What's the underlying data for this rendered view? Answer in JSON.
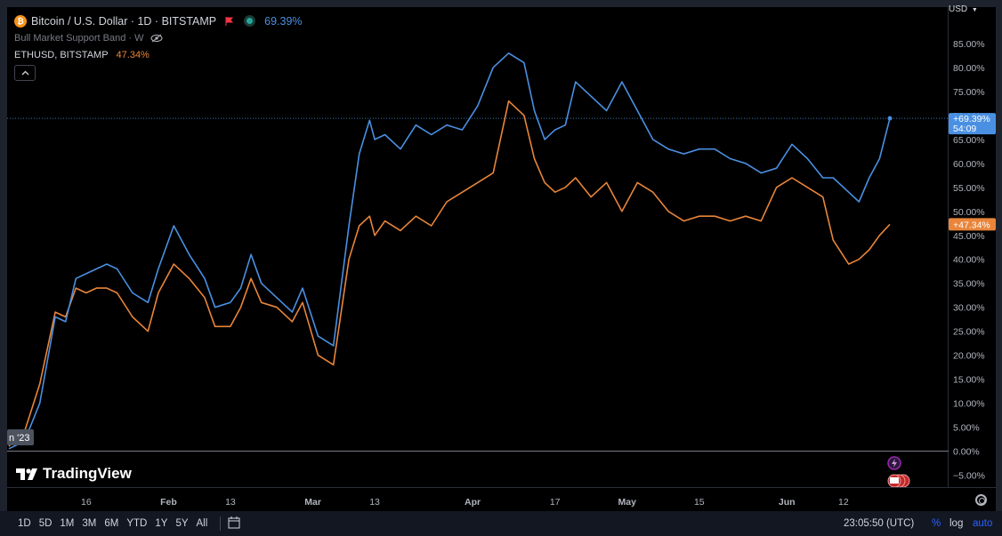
{
  "legend": {
    "main_symbol": "Bitcoin / U.S. Dollar · 1D · BITSTAMP",
    "main_change": "69.39%",
    "indicator": "Bull Market Support Band · W",
    "compare_symbol": "ETHUSD, BITSTAMP",
    "compare_change": "47.34%"
  },
  "currency_label": "USD",
  "price_labels": {
    "btc_value": "+69.39%",
    "btc_countdown": "54:09",
    "eth_value": "+47.34%"
  },
  "date_badge": "n '23",
  "brand": "TradingView",
  "timeframes": [
    "1D",
    "5D",
    "1M",
    "3M",
    "6M",
    "YTD",
    "1Y",
    "5Y",
    "All"
  ],
  "clock": "23:05:50 (UTC)",
  "scale_buttons": {
    "percent": "%",
    "log": "log",
    "auto": "auto"
  },
  "colors": {
    "btc": "#4a90e2",
    "eth": "#e8853a",
    "background": "#000000",
    "grid_text": "#b2b5be"
  },
  "chart_data": {
    "type": "line",
    "ylim": [
      -7.5,
      90
    ],
    "yticks": [
      "85.00%",
      "80.00%",
      "75.00%",
      "70.00%",
      "65.00%",
      "60.00%",
      "55.00%",
      "50.00%",
      "45.00%",
      "40.00%",
      "35.00%",
      "30.00%",
      "25.00%",
      "20.00%",
      "15.00%",
      "10.00%",
      "5.00%",
      "0.00%",
      "−5.00%"
    ],
    "ytick_values": [
      85,
      80,
      75,
      70,
      65,
      60,
      55,
      50,
      45,
      40,
      35,
      30,
      25,
      20,
      15,
      10,
      5,
      0,
      -5
    ],
    "xlim": [
      "2023-01-01",
      "2023-06-21"
    ],
    "xticks": [
      {
        "label": "16",
        "date": "2023-01-16"
      },
      {
        "label": "Feb",
        "date": "2023-02-01"
      },
      {
        "label": "13",
        "date": "2023-02-13"
      },
      {
        "label": "Mar",
        "date": "2023-03-01"
      },
      {
        "label": "13",
        "date": "2023-03-13"
      },
      {
        "label": "Apr",
        "date": "2023-04-01"
      },
      {
        "label": "17",
        "date": "2023-04-17"
      },
      {
        "label": "May",
        "date": "2023-05-01"
      },
      {
        "label": "15",
        "date": "2023-05-15"
      },
      {
        "label": "Jun",
        "date": "2023-06-01"
      },
      {
        "label": "12",
        "date": "2023-06-12"
      }
    ],
    "series": [
      {
        "name": "Bitcoin / U.S. Dollar",
        "x": [
          "2023-01-01",
          "2023-01-04",
          "2023-01-07",
          "2023-01-10",
          "2023-01-12",
          "2023-01-14",
          "2023-01-16",
          "2023-01-18",
          "2023-01-20",
          "2023-01-22",
          "2023-01-25",
          "2023-01-28",
          "2023-01-30",
          "2023-02-02",
          "2023-02-05",
          "2023-02-08",
          "2023-02-10",
          "2023-02-13",
          "2023-02-15",
          "2023-02-17",
          "2023-02-19",
          "2023-02-22",
          "2023-02-25",
          "2023-02-27",
          "2023-03-02",
          "2023-03-05",
          "2023-03-08",
          "2023-03-10",
          "2023-03-12",
          "2023-03-13",
          "2023-03-15",
          "2023-03-18",
          "2023-03-21",
          "2023-03-24",
          "2023-03-27",
          "2023-03-30",
          "2023-04-02",
          "2023-04-05",
          "2023-04-08",
          "2023-04-11",
          "2023-04-13",
          "2023-04-15",
          "2023-04-17",
          "2023-04-19",
          "2023-04-21",
          "2023-04-24",
          "2023-04-27",
          "2023-04-30",
          "2023-05-03",
          "2023-05-06",
          "2023-05-09",
          "2023-05-12",
          "2023-05-15",
          "2023-05-18",
          "2023-05-21",
          "2023-05-24",
          "2023-05-27",
          "2023-05-30",
          "2023-06-02",
          "2023-06-05",
          "2023-06-08",
          "2023-06-10",
          "2023-06-13",
          "2023-06-15",
          "2023-06-17",
          "2023-06-19",
          "2023-06-21"
        ],
        "y": [
          0.5,
          2,
          10,
          28,
          27,
          36,
          37,
          38,
          39,
          38,
          33,
          31,
          38,
          47,
          41,
          36,
          30,
          31,
          34,
          41,
          35,
          32,
          29,
          34,
          24,
          22,
          47,
          62,
          69,
          65,
          66,
          63,
          68,
          66,
          68,
          67,
          72,
          80,
          83,
          81,
          71,
          65,
          67,
          68,
          77,
          74,
          71,
          77,
          71,
          65,
          63,
          62,
          63,
          63,
          61,
          60,
          58,
          59,
          64,
          61,
          57,
          57,
          54,
          52,
          57,
          61,
          69.4
        ]
      },
      {
        "name": "ETHUSD, BITSTAMP",
        "x": [
          "2023-01-01",
          "2023-01-04",
          "2023-01-07",
          "2023-01-10",
          "2023-01-12",
          "2023-01-14",
          "2023-01-16",
          "2023-01-18",
          "2023-01-20",
          "2023-01-22",
          "2023-01-25",
          "2023-01-28",
          "2023-01-30",
          "2023-02-02",
          "2023-02-05",
          "2023-02-08",
          "2023-02-10",
          "2023-02-13",
          "2023-02-15",
          "2023-02-17",
          "2023-02-19",
          "2023-02-22",
          "2023-02-25",
          "2023-02-27",
          "2023-03-02",
          "2023-03-05",
          "2023-03-08",
          "2023-03-10",
          "2023-03-12",
          "2023-03-13",
          "2023-03-15",
          "2023-03-18",
          "2023-03-21",
          "2023-03-24",
          "2023-03-27",
          "2023-03-30",
          "2023-04-02",
          "2023-04-05",
          "2023-04-08",
          "2023-04-11",
          "2023-04-13",
          "2023-04-15",
          "2023-04-17",
          "2023-04-19",
          "2023-04-21",
          "2023-04-24",
          "2023-04-27",
          "2023-04-30",
          "2023-05-03",
          "2023-05-06",
          "2023-05-09",
          "2023-05-12",
          "2023-05-15",
          "2023-05-18",
          "2023-05-21",
          "2023-05-24",
          "2023-05-27",
          "2023-05-30",
          "2023-06-02",
          "2023-06-05",
          "2023-06-08",
          "2023-06-10",
          "2023-06-13",
          "2023-06-15",
          "2023-06-17",
          "2023-06-19",
          "2023-06-21"
        ],
        "y": [
          1,
          4,
          14,
          29,
          28,
          34,
          33,
          34,
          34,
          33,
          28,
          25,
          33,
          39,
          36,
          32,
          26,
          26,
          30,
          36,
          31,
          30,
          27,
          31,
          20,
          18,
          40,
          47,
          49,
          45,
          48,
          46,
          49,
          47,
          52,
          54,
          56,
          58,
          73,
          70,
          61,
          56,
          54,
          55,
          57,
          53,
          56,
          50,
          56,
          54,
          50,
          48,
          49,
          49,
          48,
          49,
          48,
          55,
          57,
          55,
          53,
          44,
          39,
          40,
          42,
          45,
          47.3
        ]
      }
    ]
  }
}
